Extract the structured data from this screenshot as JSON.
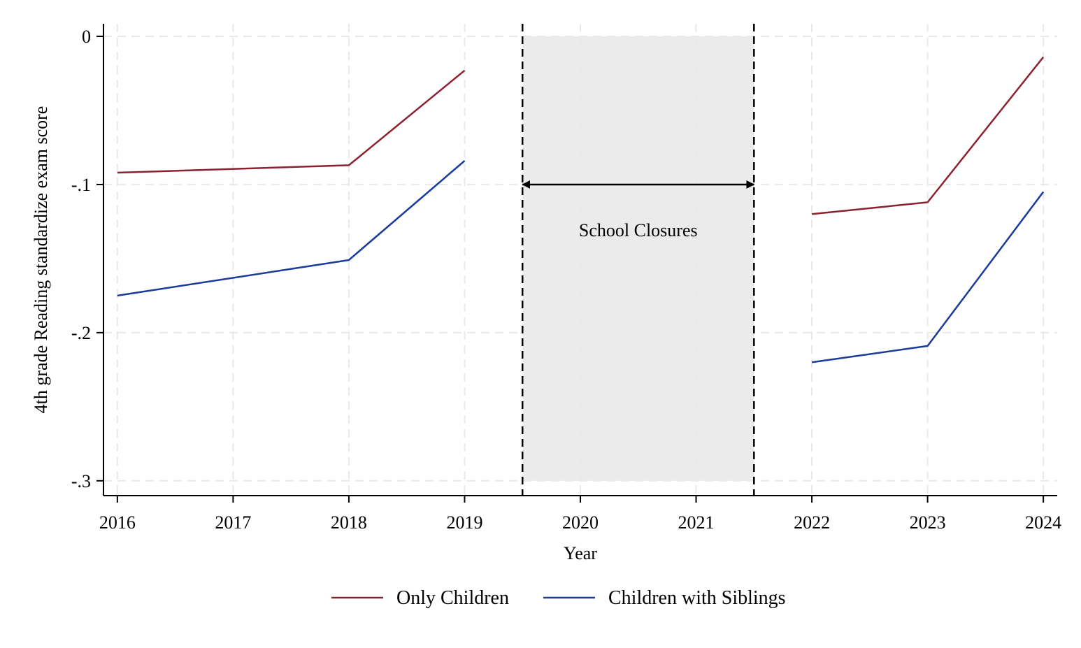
{
  "chart_data": {
    "type": "line",
    "title": "",
    "xlabel": "Year",
    "ylabel": "4th grade Reading standardize exam score",
    "x": [
      2016,
      2017,
      2018,
      2019,
      2020,
      2021,
      2022,
      2023,
      2024
    ],
    "x_tick_labels": [
      "2016",
      "2017",
      "2018",
      "2019",
      "2020",
      "2021",
      "2022",
      "2023",
      "2024"
    ],
    "y_ticks": [
      0,
      -0.1,
      -0.2,
      -0.3
    ],
    "y_tick_labels": [
      "0",
      "-.1",
      "-.2",
      "-.3"
    ],
    "xlim": [
      2015.88,
      2024.12
    ],
    "ylim": [
      -0.31,
      0.0085
    ],
    "grid": true,
    "legend_position": "bottom",
    "series": [
      {
        "name": "Only Children",
        "color": "#8b2232",
        "segments": [
          [
            [
              2016,
              -0.092
            ],
            [
              2018,
              -0.087
            ],
            [
              2019,
              -0.023
            ]
          ],
          [
            [
              2022,
              -0.12
            ],
            [
              2023,
              -0.112
            ],
            [
              2024,
              -0.014
            ]
          ]
        ]
      },
      {
        "name": "Children with Siblings",
        "color": "#1a3a9c",
        "segments": [
          [
            [
              2016,
              -0.175
            ],
            [
              2018,
              -0.151
            ],
            [
              2019,
              -0.084
            ]
          ],
          [
            [
              2022,
              -0.22
            ],
            [
              2023,
              -0.209
            ],
            [
              2024,
              -0.105
            ]
          ]
        ]
      }
    ],
    "annotation": {
      "label": "School Closures",
      "x_start": 2019.5,
      "x_end": 2021.5,
      "arrow_y": -0.1,
      "shade_color": "#ebebeb"
    }
  }
}
